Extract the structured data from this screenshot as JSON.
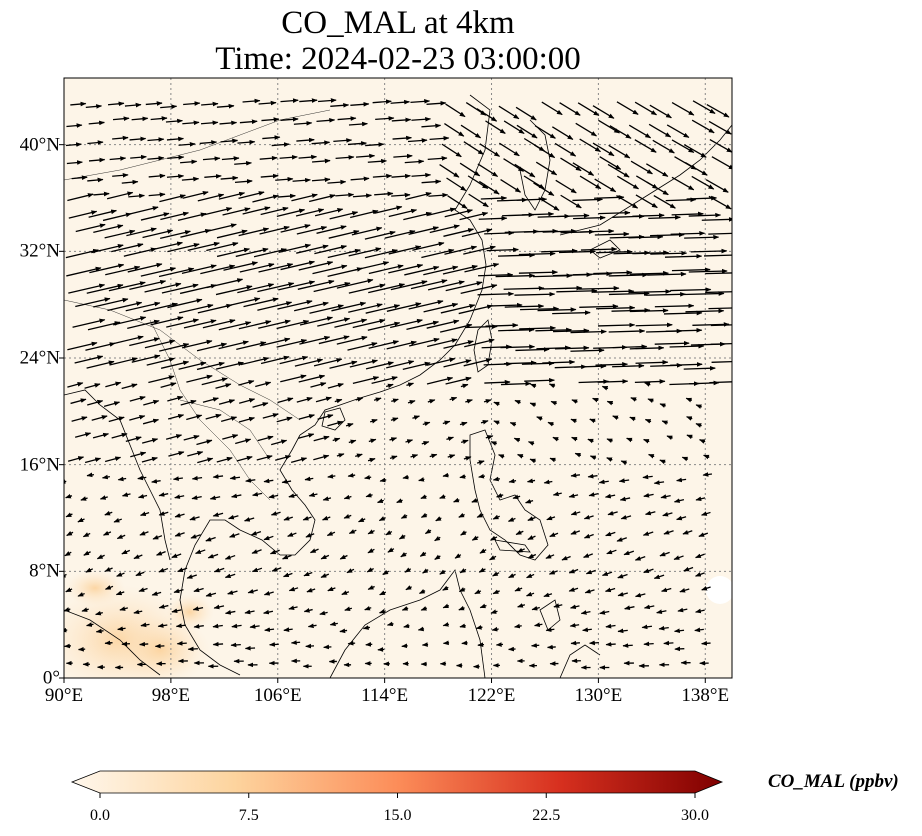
{
  "title": {
    "line1": "CO_MAL at 4km",
    "line2": "Time: 2024-02-23 03:00:00"
  },
  "map": {
    "lon_range": [
      90,
      140
    ],
    "lat_range": [
      0,
      45
    ],
    "gridlines": "dotted",
    "lon_ticks": [
      {
        "value": 90,
        "label": "90°E"
      },
      {
        "value": 98,
        "label": "98°E"
      },
      {
        "value": 106,
        "label": "106°E"
      },
      {
        "value": 114,
        "label": "114°E"
      },
      {
        "value": 122,
        "label": "122°E"
      },
      {
        "value": 130,
        "label": "130°E"
      },
      {
        "value": 138,
        "label": "138°E"
      }
    ],
    "lat_ticks": [
      {
        "value": 0,
        "label": "0°"
      },
      {
        "value": 8,
        "label": "8°N"
      },
      {
        "value": 16,
        "label": "16°N"
      },
      {
        "value": 24,
        "label": "24°N"
      },
      {
        "value": 32,
        "label": "32°N"
      },
      {
        "value": 40,
        "label": "40°N"
      }
    ],
    "background_color": "#fdf5e8",
    "field": "CO_MAL concentration, near-zero everywhere except slightly elevated (~3-6 ppbv) over Sumatra / Malay peninsula south of 6°N"
  },
  "colorbar": {
    "label": "CO_MAL (ppbv)",
    "min": 0.0,
    "max": 30.0,
    "extend": "both",
    "colormap": "OrRd",
    "colors": [
      "#fff7ec",
      "#fdd49e",
      "#fc8d59",
      "#d7301f",
      "#7f0000"
    ],
    "ticks": [
      {
        "value": 0.0,
        "label": "0.0"
      },
      {
        "value": 7.5,
        "label": "7.5"
      },
      {
        "value": 15.0,
        "label": "15.0"
      },
      {
        "value": 22.5,
        "label": "22.5"
      },
      {
        "value": 30.0,
        "label": "30.0"
      }
    ]
  }
}
